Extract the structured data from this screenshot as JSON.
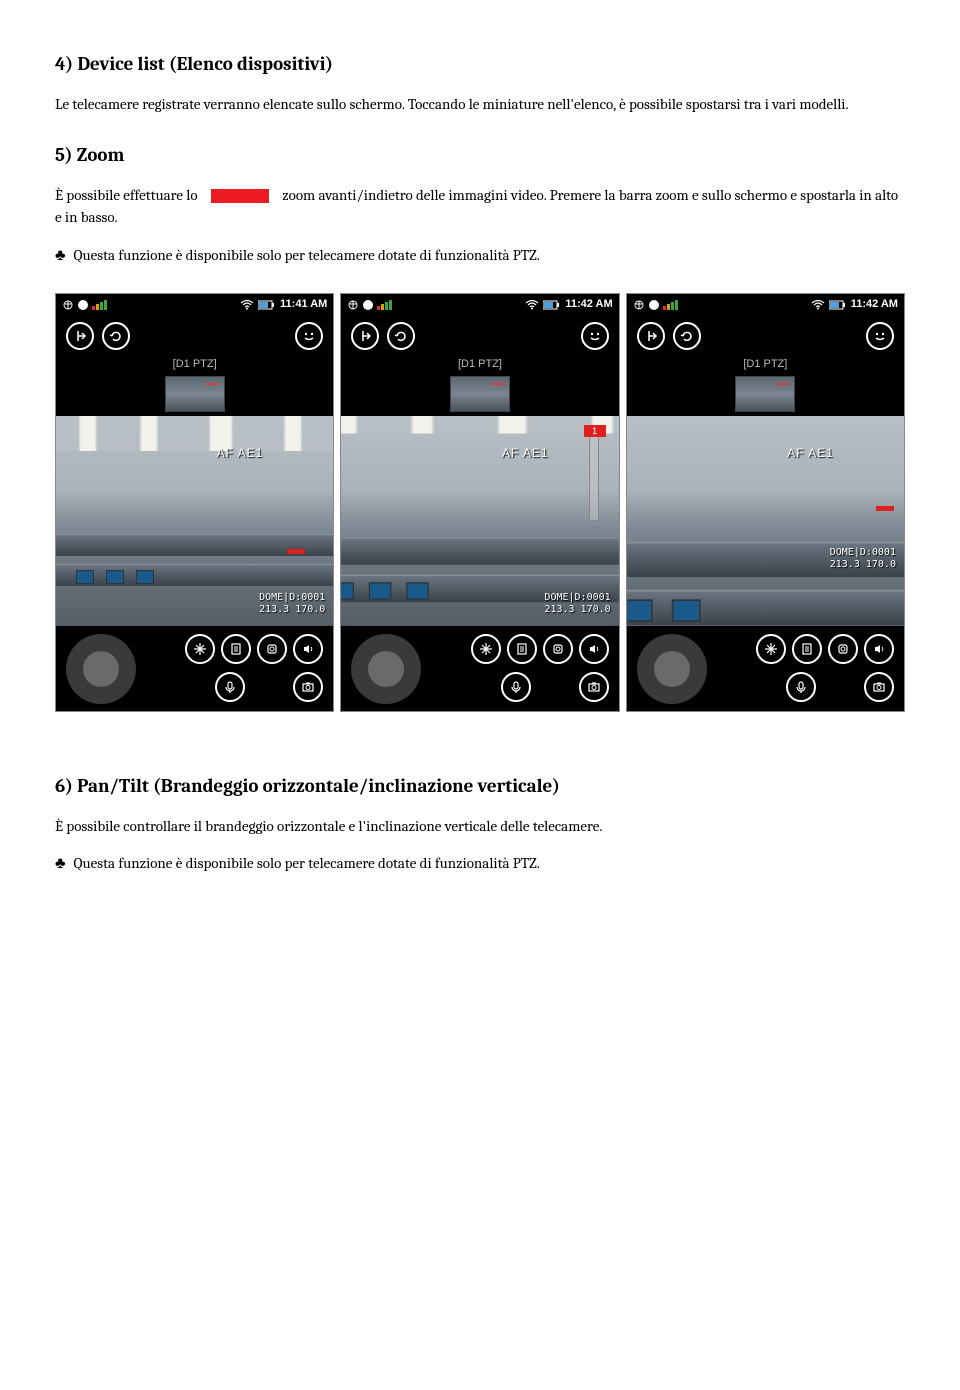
{
  "section4": {
    "heading": "4) Device list (Elenco dispositivi)",
    "paragraph": "Le telecamere registrate verranno elencate sullo schermo. Toccando le miniature nell'elenco, è possibile spostarsi tra i vari modelli."
  },
  "section5": {
    "heading": "5) Zoom",
    "line1_before": "È possibile effettuare lo",
    "line1_after": "zoom avanti/indietro delle immagini video. Premere la barra zoom e sullo schermo e spostarla in alto e in basso.",
    "note": "Questa funzione è disponibile solo per telecamere dotate di funzionalità PTZ."
  },
  "section6": {
    "heading": "6) Pan/Tilt (Brandeggio orizzontale/inclinazione verticale)",
    "paragraph": "È possibile controllare il brandeggio orizzontale e l'inclinazione verticale delle telecamere.",
    "note": "Questa funzione è disponibile solo per telecamere dotate di funzionalità PTZ."
  },
  "screenshots": [
    {
      "time": "11:41 AM",
      "channel": "[D1 PTZ]",
      "ae_label": "AF  AE1",
      "osd_line1": "DOME|D:0001",
      "osd_line2": "213.3 170.0",
      "show_zoom_bar": false,
      "show_red_marker": true,
      "red_marker_pos": "bottom-right",
      "zoom_level": "normal"
    },
    {
      "time": "11:42 AM",
      "channel": "[D1 PTZ]",
      "ae_label": "AF  AE1",
      "osd_line1": "DOME|D:0001",
      "osd_line2": "213.3 170.0",
      "show_zoom_bar": true,
      "zoom_handle_label": "1",
      "show_red_marker": false,
      "zoom_level": "mid"
    },
    {
      "time": "11:42 AM",
      "channel": "[D1 PTZ]",
      "ae_label": "AF  AE1",
      "osd_line1": "DOME|D:0001",
      "osd_line2": "213.3 170.0",
      "show_zoom_bar": false,
      "show_red_marker": true,
      "red_marker_pos": "mid-right",
      "zoom_level": "zoomed"
    }
  ],
  "colors": {
    "red_block": "#ed1c24",
    "phone_bg": "#000000",
    "text": "#000000",
    "page_bg": "#ffffff"
  }
}
